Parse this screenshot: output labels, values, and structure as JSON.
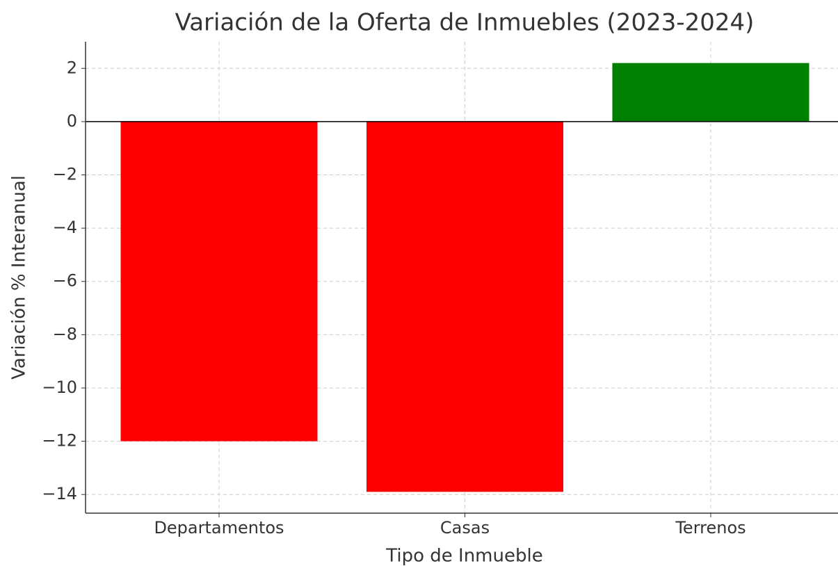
{
  "chart_data": {
    "type": "bar",
    "title": "Variación de la Oferta de Inmuebles (2023-2024)",
    "xlabel": "Tipo de Inmueble",
    "ylabel": "Variación % Interanual",
    "categories": [
      "Departamentos",
      "Casas",
      "Terrenos"
    ],
    "values": [
      -12,
      -13.9,
      2.2
    ],
    "colors": [
      "#ff0000",
      "#ff0000",
      "#008000"
    ],
    "ylim": [
      -14.7,
      3
    ],
    "yticks": [
      {
        "value": -14,
        "label": "−14"
      },
      {
        "value": -12,
        "label": "−12"
      },
      {
        "value": -10,
        "label": "−10"
      },
      {
        "value": -8,
        "label": "−8"
      },
      {
        "value": -6,
        "label": "−6"
      },
      {
        "value": -4,
        "label": "−4"
      },
      {
        "value": -2,
        "label": "−2"
      },
      0,
      2
    ],
    "grid": true
  }
}
